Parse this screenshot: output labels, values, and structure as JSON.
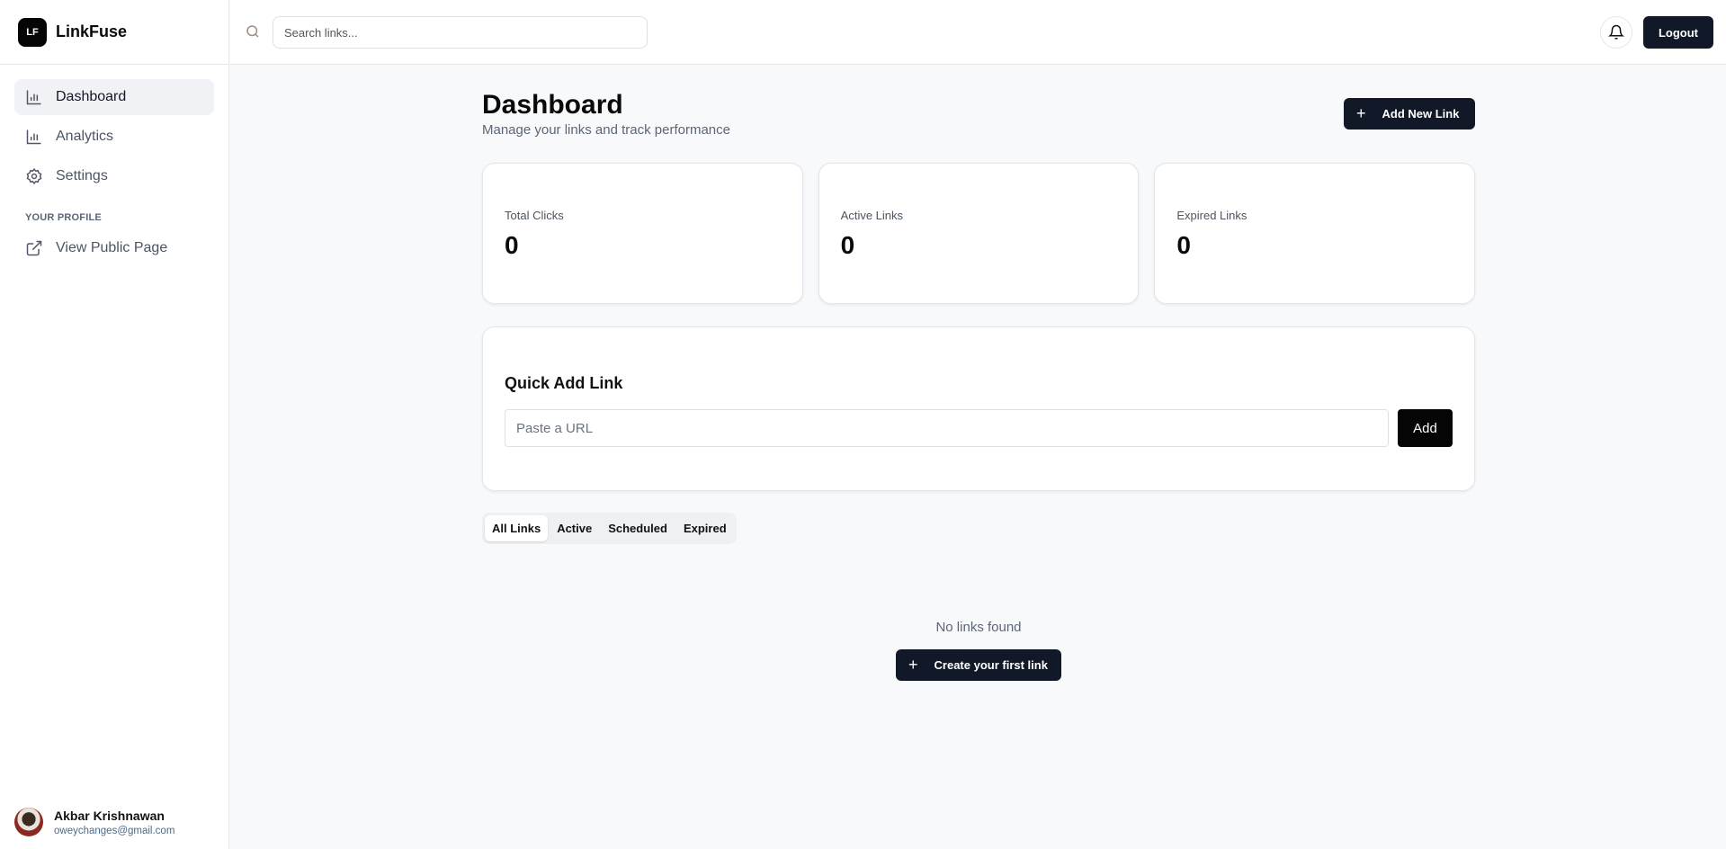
{
  "brand": {
    "logo": "LF",
    "name": "LinkFuse"
  },
  "sidebar": {
    "items": [
      {
        "label": "Dashboard",
        "icon": "bar-chart-icon",
        "active": true
      },
      {
        "label": "Analytics",
        "icon": "bar-chart-icon"
      },
      {
        "label": "Settings",
        "icon": "gear-icon"
      }
    ],
    "section": "YOUR PROFILE",
    "profile_link": {
      "label": "View Public Page",
      "icon": "external-link-icon"
    }
  },
  "user": {
    "name": "Akbar Krishnawan",
    "email": "oweychanges@gmail.com"
  },
  "header": {
    "search_placeholder": "Search links...",
    "logout": "Logout"
  },
  "main": {
    "title": "Dashboard",
    "subtitle": "Manage your links and track performance",
    "add_new": "Add New Link",
    "stats": [
      {
        "label": "Total Clicks",
        "value": "0"
      },
      {
        "label": "Active Links",
        "value": "0"
      },
      {
        "label": "Expired Links",
        "value": "0"
      }
    ],
    "quick_add": {
      "title": "Quick Add Link",
      "placeholder": "Paste a URL",
      "button": "Add"
    },
    "tabs": [
      {
        "label": "All Links",
        "active": true
      },
      {
        "label": "Active"
      },
      {
        "label": "Scheduled"
      },
      {
        "label": "Expired"
      }
    ],
    "empty": {
      "text": "No links found",
      "button": "Create your first link"
    }
  }
}
